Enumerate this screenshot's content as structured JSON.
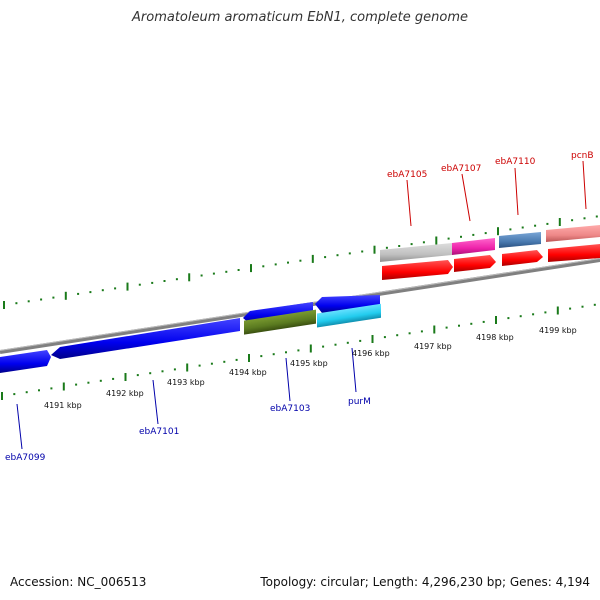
{
  "title": "Aromatoleum aromaticum EbN1, complete genome",
  "accession": "Accession: NC_006513",
  "topology": "Topology: circular; Length: 4,296,230 bp; Genes: 4,194",
  "colors": {
    "backbone": "#808080",
    "tick": "#1a7a1a",
    "label_top": "#cc0000",
    "label_bottom": "#0000aa",
    "gene_blue": "#0000ee",
    "gene_olive": "#5a7a20",
    "gene_cyan": "#22ccee",
    "gene_red": "#ff0000",
    "gene_grey": "#c0c0c0",
    "gene_magenta": "#ee22aa",
    "gene_steel": "#4a7ab0",
    "gene_pink": "#ee8888"
  },
  "scale_labels": [
    "4191 kbp",
    "4192 kbp",
    "4193 kbp",
    "4194 kbp",
    "4195 kbp",
    "4196 kbp",
    "4197 kbp",
    "4198 kbp",
    "4199 kbp"
  ],
  "gene_labels_top": [
    "ebA7105",
    "ebA7107",
    "ebA7110",
    "pcnB"
  ],
  "gene_labels_bottom": [
    "ebA7099",
    "ebA7101",
    "ebA7103",
    "purM"
  ]
}
